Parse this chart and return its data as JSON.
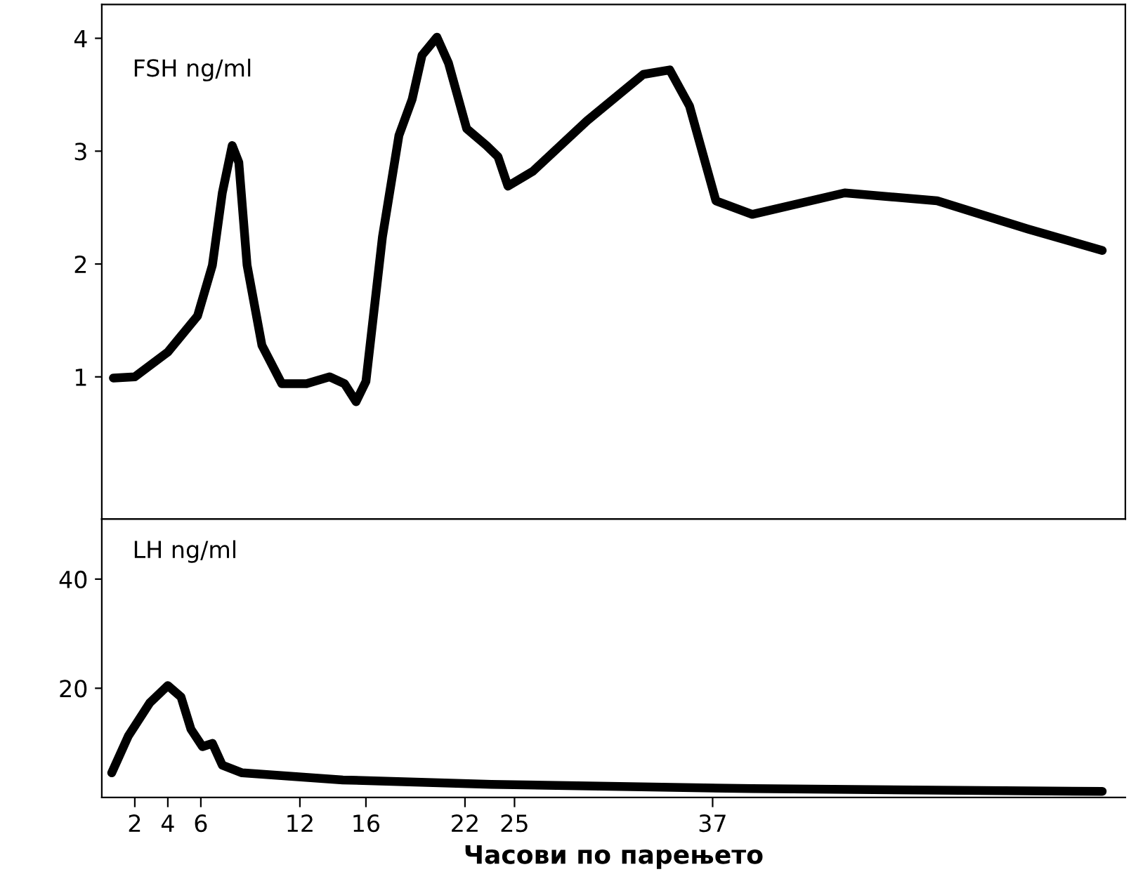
{
  "chart_data": [
    {
      "type": "line",
      "ylabel": null,
      "annotations": [
        "FSH ng/ml"
      ],
      "x": [
        0.7,
        2,
        4,
        5.8,
        6.7,
        7.3,
        7.9,
        8.3,
        8.8,
        9.7,
        10.9,
        12.4,
        13.8,
        14.7,
        15.4,
        16,
        17,
        18,
        18.8,
        19.4,
        20.3,
        21,
        22.1,
        23.3,
        24,
        24.6,
        26.1,
        29.4,
        32.8,
        34.4,
        35.6,
        37.2,
        39.4,
        45,
        50.6,
        56.1,
        60.6
      ],
      "series": [
        {
          "color": "#000000",
          "values": [
            0.99,
            1.0,
            1.22,
            1.54,
            1.99,
            2.63,
            3.05,
            2.9,
            1.99,
            1.28,
            0.94,
            0.94,
            1.0,
            0.94,
            0.78,
            0.96,
            2.24,
            3.14,
            3.46,
            3.85,
            4.01,
            3.78,
            3.2,
            3.05,
            2.95,
            2.69,
            2.82,
            3.27,
            3.68,
            3.72,
            3.4,
            2.56,
            2.44,
            2.63,
            2.56,
            2.31,
            2.12
          ]
        }
      ],
      "xlim": [
        0,
        62
      ],
      "xticks": [
        2,
        4,
        6,
        12,
        16,
        22,
        25,
        37
      ],
      "ylim": [
        -0.26,
        4.3
      ],
      "yticks": [
        1,
        2,
        3,
        4
      ],
      "tick_labels": "y",
      "grid": false,
      "legend": false
    },
    {
      "type": "line",
      "xlabel": "Часови по парењето",
      "annotations": [
        "LH ng/ml"
      ],
      "x": [
        0.6,
        1.6,
        2.9,
        4,
        4.8,
        5.4,
        6.1,
        6.7,
        7.3,
        8.5,
        14.6,
        23.6,
        39.4,
        60.6
      ],
      "series": [
        {
          "color": "#000000",
          "values": [
            4.5,
            11.2,
            17.3,
            20.5,
            18.4,
            12.5,
            9.3,
            9.9,
            5.9,
            4.5,
            3.2,
            2.4,
            1.6,
            1.1
          ]
        }
      ],
      "xlim": [
        0,
        62
      ],
      "xticks": [
        2,
        4,
        6,
        12,
        16,
        22,
        25,
        37
      ],
      "ylim": [
        0,
        51
      ],
      "yticks": [
        20,
        40
      ],
      "grid": false,
      "legend": false
    }
  ]
}
